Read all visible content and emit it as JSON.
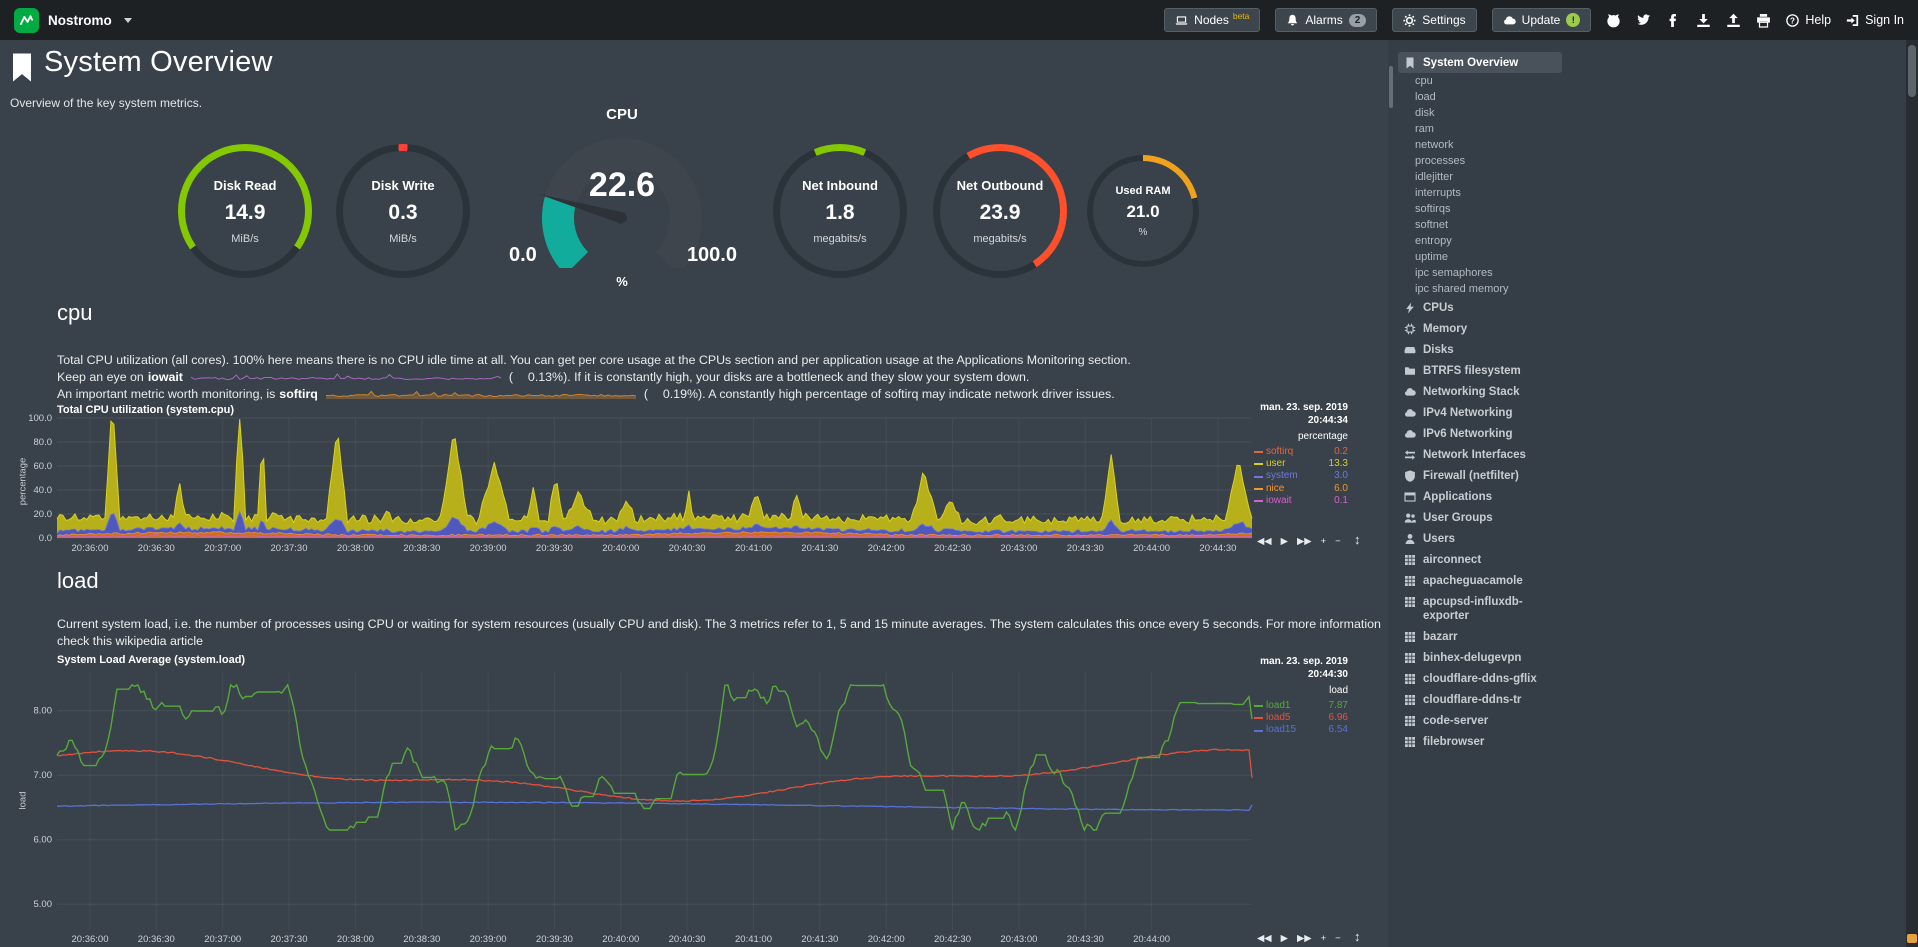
{
  "nav": {
    "brand": "Nostromo",
    "nodes_label": "Nodes",
    "nodes_badge": "beta",
    "alarms_label": "Alarms",
    "alarms_count": "2",
    "settings_label": "Settings",
    "update_label": "Update",
    "update_badge": "!",
    "help_label": "Help",
    "signin_label": "Sign In"
  },
  "header": {
    "title": "System Overview",
    "subtitle": "Overview of the key system metrics."
  },
  "gauges": {
    "cpu": {
      "title": "CPU",
      "value": "22.6",
      "min": "0.0",
      "max": "100.0",
      "unit": "%",
      "percent": 22.6,
      "color": "#12ac9d",
      "track": "#3e454c"
    },
    "rings": [
      {
        "id": "disk-read",
        "title": "Disk Read",
        "value": "14.9",
        "unit": "MiB/s",
        "color": "#84c900",
        "from": -125,
        "to": 125,
        "size": 134
      },
      {
        "id": "disk-write",
        "title": "Disk Write",
        "value": "0.3",
        "unit": "MiB/s",
        "color": "#ff4136",
        "from": -4,
        "to": 4,
        "size": 134
      },
      {
        "id": "net-inbound",
        "title": "Net Inbound",
        "value": "1.8",
        "unit": "megabits/s",
        "color": "#84c900",
        "from": -23,
        "to": 23,
        "size": 134
      },
      {
        "id": "net-outbound",
        "title": "Net Outbound",
        "value": "23.9",
        "unit": "megabits/s",
        "color": "#ff4f2b",
        "from": -30,
        "to": 147,
        "size": 134
      },
      {
        "id": "used-ram",
        "title": "Used RAM",
        "value": "21.0",
        "unit": "%",
        "color": "#f0a21d",
        "from": 0,
        "to": 76,
        "size": 112
      }
    ]
  },
  "cpu_section": {
    "heading": "cpu",
    "intro": "Total CPU utilization (all cores). 100% here means there is no CPU idle time at all. You can get per core usage at the CPUs section and per application usage at the Applications Monitoring section.",
    "iowait_lead": "Keep an eye on",
    "iowait_keyword": "iowait",
    "paren_open": "(",
    "iowait_value": "0.13%",
    "iowait_tail": "). If it is constantly high, your disks are a bottleneck and they slow your system down.",
    "softirq_lead": "An important metric worth monitoring, is",
    "softirq_keyword": "softirq",
    "softirq_value": "0.19%",
    "softirq_tail": "). A constantly high percentage of softirq may indicate network driver issues.",
    "chart": {
      "title": "Total CPU utilization (system.cpu)",
      "date": "man. 23. sep. 2019",
      "time": "20:44:34",
      "unit": "percentage",
      "ylabel": "percentage",
      "yticks": [
        "100.0",
        "80.0",
        "60.0",
        "40.0",
        "20.0",
        "0.0"
      ],
      "ytick_values": [
        100,
        80,
        60,
        40,
        20,
        0
      ],
      "xticks": [
        "20:36:00",
        "20:36:30",
        "20:37:00",
        "20:37:30",
        "20:38:00",
        "20:38:30",
        "20:39:00",
        "20:39:30",
        "20:40:00",
        "20:40:30",
        "20:41:00",
        "20:41:30",
        "20:42:00",
        "20:42:30",
        "20:43:00",
        "20:43:30",
        "20:44:00",
        "20:44:30"
      ],
      "legend": [
        {
          "name": "softirq",
          "value": "0.2",
          "color": "#e3653b"
        },
        {
          "name": "user",
          "value": "13.3",
          "color": "#d6cf1f"
        },
        {
          "name": "system",
          "value": "3.0",
          "color": "#7177dd"
        },
        {
          "name": "nice",
          "value": "6.0",
          "color": "#f0972e"
        },
        {
          "name": "iowait",
          "value": "0.1",
          "color": "#d45fd0"
        }
      ],
      "toolbar": [
        "◀◀",
        "▶",
        "▶▶",
        "+",
        "−"
      ],
      "resize": "↕"
    }
  },
  "load_section": {
    "heading": "load",
    "intro": "Current system load, i.e. the number of processes using CPU or waiting for system resources (usually CPU and disk). The 3 metrics refer to 1, 5 and 15 minute averages. The system calculates this once every 5 seconds. For more information check this",
    "link_text": "wikipedia article",
    "chart": {
      "title": "System Load Average (system.load)",
      "date": "man. 23. sep. 2019",
      "time": "20:44:30",
      "unit": "load",
      "ylabel": "load",
      "yticks": [
        "8.00",
        "7.00",
        "6.00",
        "5.00"
      ],
      "ytick_values": [
        8,
        7,
        6,
        5
      ],
      "yrange": [
        4.6,
        8.6
      ],
      "xticks": [
        "20:36:00",
        "20:36:30",
        "20:37:00",
        "20:37:30",
        "20:38:00",
        "20:38:30",
        "20:39:00",
        "20:39:30",
        "20:40:00",
        "20:40:30",
        "20:41:00",
        "20:41:30",
        "20:42:00",
        "20:42:30",
        "20:43:00",
        "20:43:30",
        "20:44:00"
      ],
      "legend": [
        {
          "name": "load1",
          "value": "7.87",
          "color": "#57a83b"
        },
        {
          "name": "load5",
          "value": "6.96",
          "color": "#e2523d"
        },
        {
          "name": "load15",
          "value": "6.54",
          "color": "#5672d4"
        }
      ],
      "toolbar": [
        "◀◀",
        "▶",
        "▶▶",
        "+",
        "−"
      ],
      "resize": "↕"
    }
  },
  "sidebar": {
    "items": [
      {
        "label": "System Overview",
        "icon": "bookmark",
        "type": "section",
        "active": true
      },
      {
        "label": "cpu",
        "type": "sub"
      },
      {
        "label": "load",
        "type": "sub"
      },
      {
        "label": "disk",
        "type": "sub"
      },
      {
        "label": "ram",
        "type": "sub"
      },
      {
        "label": "network",
        "type": "sub"
      },
      {
        "label": "processes",
        "type": "sub"
      },
      {
        "label": "idlejitter",
        "type": "sub"
      },
      {
        "label": "interrupts",
        "type": "sub"
      },
      {
        "label": "softirqs",
        "type": "sub"
      },
      {
        "label": "softnet",
        "type": "sub"
      },
      {
        "label": "entropy",
        "type": "sub"
      },
      {
        "label": "uptime",
        "type": "sub"
      },
      {
        "label": "ipc semaphores",
        "type": "sub"
      },
      {
        "label": "ipc shared memory",
        "type": "sub"
      },
      {
        "label": "CPUs",
        "icon": "bolt",
        "type": "section"
      },
      {
        "label": "Memory",
        "icon": "chip",
        "type": "section"
      },
      {
        "label": "Disks",
        "icon": "hdd",
        "type": "section"
      },
      {
        "label": "BTRFS filesystem",
        "icon": "folder",
        "type": "section"
      },
      {
        "label": "Networking Stack",
        "icon": "cloud",
        "type": "section"
      },
      {
        "label": "IPv4 Networking",
        "icon": "cloud",
        "type": "section"
      },
      {
        "label": "IPv6 Networking",
        "icon": "cloud",
        "type": "section"
      },
      {
        "label": "Network Interfaces",
        "icon": "exchange",
        "type": "section"
      },
      {
        "label": "Firewall (netfilter)",
        "icon": "shield",
        "type": "section"
      },
      {
        "label": "Applications",
        "icon": "window",
        "type": "section"
      },
      {
        "label": "User Groups",
        "icon": "users",
        "type": "section"
      },
      {
        "label": "Users",
        "icon": "user",
        "type": "section"
      },
      {
        "label": "airconnect",
        "icon": "grid",
        "type": "section"
      },
      {
        "label": "apacheguacamole",
        "icon": "grid",
        "type": "section"
      },
      {
        "label": "apcupsd-influxdb-exporter",
        "icon": "grid",
        "type": "section"
      },
      {
        "label": "bazarr",
        "icon": "grid",
        "type": "section"
      },
      {
        "label": "binhex-delugevpn",
        "icon": "grid",
        "type": "section"
      },
      {
        "label": "cloudflare-ddns-gflix",
        "icon": "grid",
        "type": "section"
      },
      {
        "label": "cloudflare-ddns-tr",
        "icon": "grid",
        "type": "section"
      },
      {
        "label": "code-server",
        "icon": "grid",
        "type": "section"
      },
      {
        "label": "filebrowser",
        "icon": "grid",
        "type": "section"
      }
    ]
  }
}
